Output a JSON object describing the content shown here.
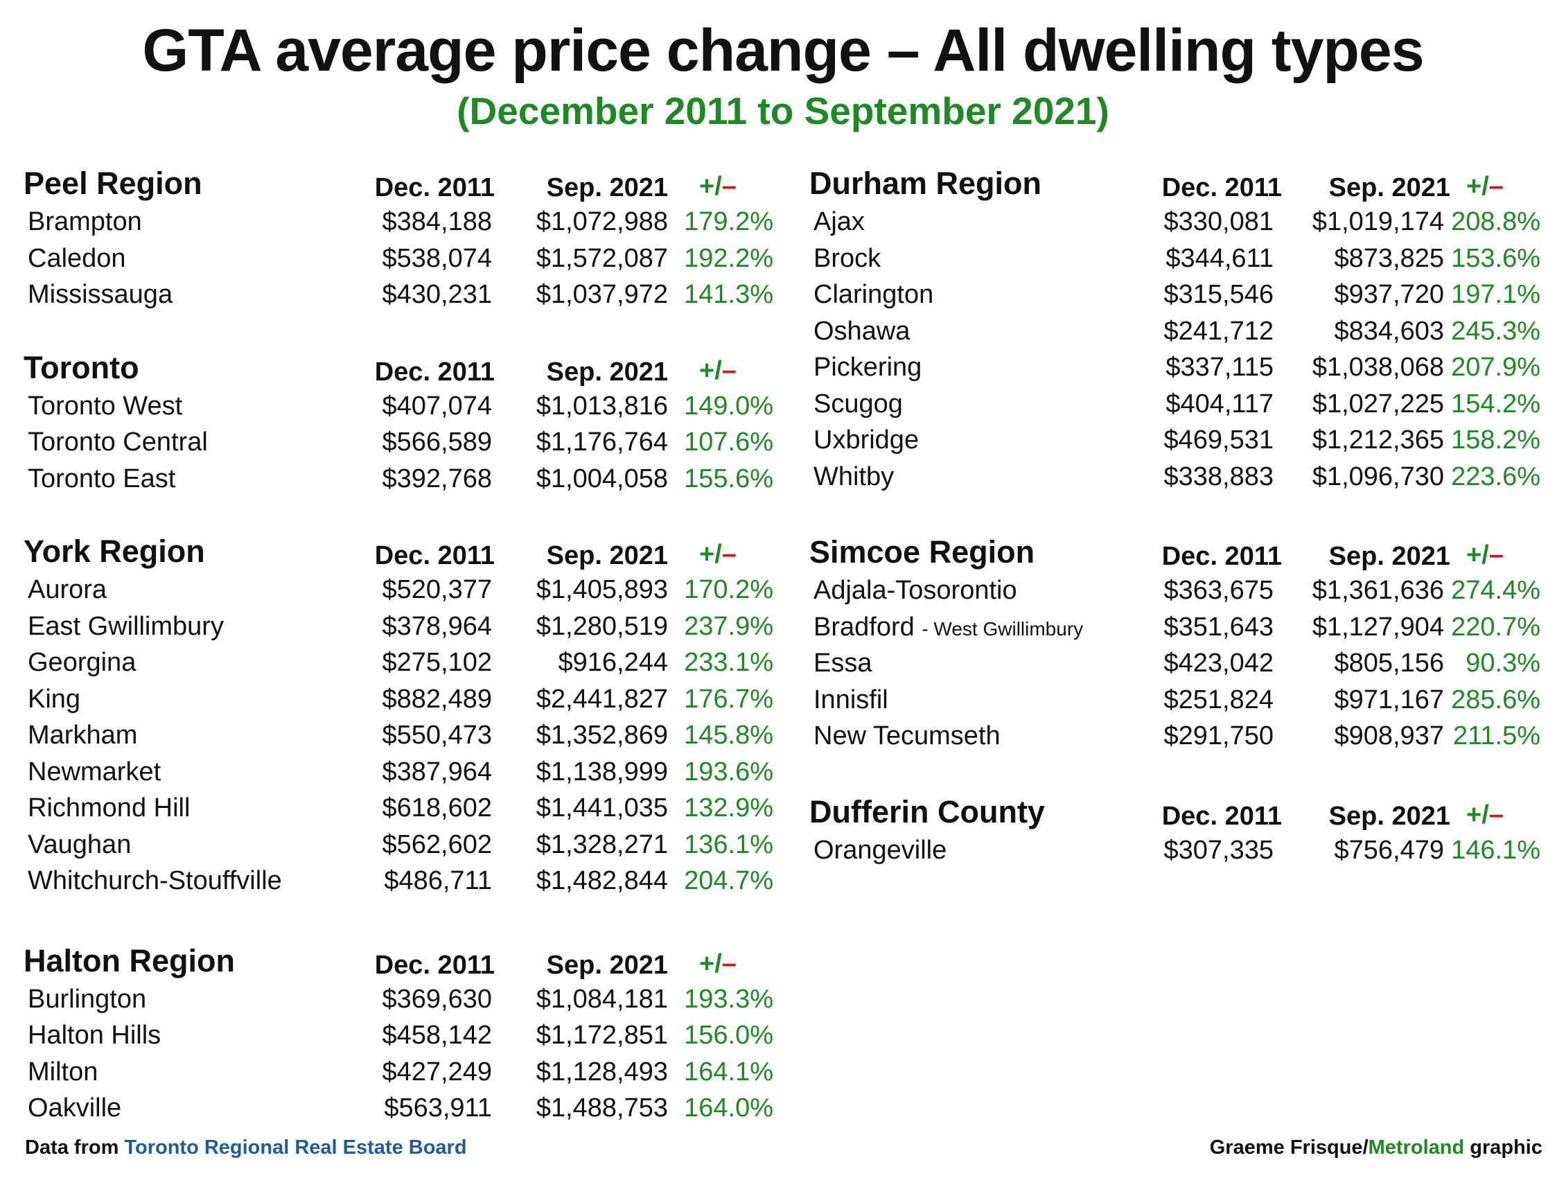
{
  "title": "GTA average price change – All dwelling types",
  "subtitle": "(December 2011 to September 2021)",
  "headers": {
    "dec2011": "Dec. 2011",
    "sep2021": "Sep. 2021",
    "plus": "+/",
    "minus": "–"
  },
  "colors": {
    "positive": "#1d8a23",
    "negative": "#d01818",
    "source_link": "#1f5c99",
    "text": "#111111"
  },
  "chart_data": {
    "type": "table",
    "title": "GTA average price change – All dwelling types",
    "subtitle": "(December 2011 to September 2021)",
    "columns": [
      "Dec. 2011",
      "Sep. 2021",
      "+/–"
    ],
    "regions": [
      {
        "name": "Peel Region",
        "rows": [
          {
            "municipality": "Brampton",
            "dec2011": "$384,188",
            "sep2021": "$1,072,988",
            "change": "179.2%"
          },
          {
            "municipality": "Caledon",
            "dec2011": "$538,074",
            "sep2021": "$1,572,087",
            "change": "192.2%"
          },
          {
            "municipality": "Mississauga",
            "dec2011": "$430,231",
            "sep2021": "$1,037,972",
            "change": "141.3%"
          }
        ]
      },
      {
        "name": "Toronto",
        "rows": [
          {
            "municipality": "Toronto West",
            "dec2011": "$407,074",
            "sep2021": "$1,013,816",
            "change": "149.0%"
          },
          {
            "municipality": "Toronto Central",
            "dec2011": "$566,589",
            "sep2021": "$1,176,764",
            "change": "107.6%"
          },
          {
            "municipality": "Toronto East",
            "dec2011": "$392,768",
            "sep2021": "$1,004,058",
            "change": "155.6%"
          }
        ]
      },
      {
        "name": "York Region",
        "rows": [
          {
            "municipality": "Aurora",
            "dec2011": "$520,377",
            "sep2021": "$1,405,893",
            "change": "170.2%"
          },
          {
            "municipality": "East Gwillimbury",
            "dec2011": "$378,964",
            "sep2021": "$1,280,519",
            "change": "237.9%"
          },
          {
            "municipality": "Georgina",
            "dec2011": "$275,102",
            "sep2021": "$916,244",
            "change": "233.1%"
          },
          {
            "municipality": "King",
            "dec2011": "$882,489",
            "sep2021": "$2,441,827",
            "change": "176.7%"
          },
          {
            "municipality": "Markham",
            "dec2011": "$550,473",
            "sep2021": "$1,352,869",
            "change": "145.8%"
          },
          {
            "municipality": "Newmarket",
            "dec2011": "$387,964",
            "sep2021": "$1,138,999",
            "change": "193.6%"
          },
          {
            "municipality": "Richmond Hill",
            "dec2011": "$618,602",
            "sep2021": "$1,441,035",
            "change": "132.9%"
          },
          {
            "municipality": "Vaughan",
            "dec2011": "$562,602",
            "sep2021": "$1,328,271",
            "change": "136.1%"
          },
          {
            "municipality": "Whitchurch-Stouffville",
            "dec2011": "$486,711",
            "sep2021": "$1,482,844",
            "change": "204.7%"
          }
        ]
      },
      {
        "name": "Halton Region",
        "rows": [
          {
            "municipality": "Burlington",
            "dec2011": "$369,630",
            "sep2021": "$1,084,181",
            "change": "193.3%"
          },
          {
            "municipality": "Halton Hills",
            "dec2011": "$458,142",
            "sep2021": "$1,172,851",
            "change": "156.0%"
          },
          {
            "municipality": "Milton",
            "dec2011": "$427,249",
            "sep2021": "$1,128,493",
            "change": "164.1%"
          },
          {
            "municipality": "Oakville",
            "dec2011": "$563,911",
            "sep2021": "$1,488,753",
            "change": "164.0%"
          }
        ]
      },
      {
        "name": "Durham Region",
        "rows": [
          {
            "municipality": "Ajax",
            "dec2011": "$330,081",
            "sep2021": "$1,019,174",
            "change": "208.8%"
          },
          {
            "municipality": "Brock",
            "dec2011": "$344,611",
            "sep2021": "$873,825",
            "change": "153.6%"
          },
          {
            "municipality": "Clarington",
            "dec2011": "$315,546",
            "sep2021": "$937,720",
            "change": "197.1%"
          },
          {
            "municipality": "Oshawa",
            "dec2011": "$241,712",
            "sep2021": "$834,603",
            "change": "245.3%"
          },
          {
            "municipality": "Pickering",
            "dec2011": "$337,115",
            "sep2021": "$1,038,068",
            "change": "207.9%"
          },
          {
            "municipality": "Scugog",
            "dec2011": "$404,117",
            "sep2021": "$1,027,225",
            "change": "154.2%"
          },
          {
            "municipality": "Uxbridge",
            "dec2011": "$469,531",
            "sep2021": "$1,212,365",
            "change": "158.2%"
          },
          {
            "municipality": "Whitby",
            "dec2011": "$338,883",
            "sep2021": "$1,096,730",
            "change": "223.6%"
          }
        ]
      },
      {
        "name": "Simcoe Region",
        "rows": [
          {
            "municipality": "Adjala-Tosorontio",
            "dec2011": "$363,675",
            "sep2021": "$1,361,636",
            "change": "274.4%"
          },
          {
            "municipality": "Bradford",
            "note": "- West Gwillimbury",
            "dec2011": "$351,643",
            "sep2021": "$1,127,904",
            "change": "220.7%"
          },
          {
            "municipality": "Essa",
            "dec2011": "$423,042",
            "sep2021": "$805,156",
            "change": "90.3%"
          },
          {
            "municipality": "Innisfil",
            "dec2011": "$251,824",
            "sep2021": "$971,167",
            "change": "285.6%"
          },
          {
            "municipality": "New Tecumseth",
            "dec2011": "$291,750",
            "sep2021": "$908,937",
            "change": "211.5%"
          }
        ]
      },
      {
        "name": "Dufferin County",
        "rows": [
          {
            "municipality": "Orangeville",
            "dec2011": "$307,335",
            "sep2021": "$756,479",
            "change": "146.1%"
          }
        ]
      }
    ]
  },
  "footer": {
    "source_prefix": "Data from ",
    "source_name": "Toronto Regional Real Estate Board",
    "credit_author": "Graeme Frisque/",
    "credit_brand": "Metroland",
    "credit_suffix": " graphic"
  }
}
